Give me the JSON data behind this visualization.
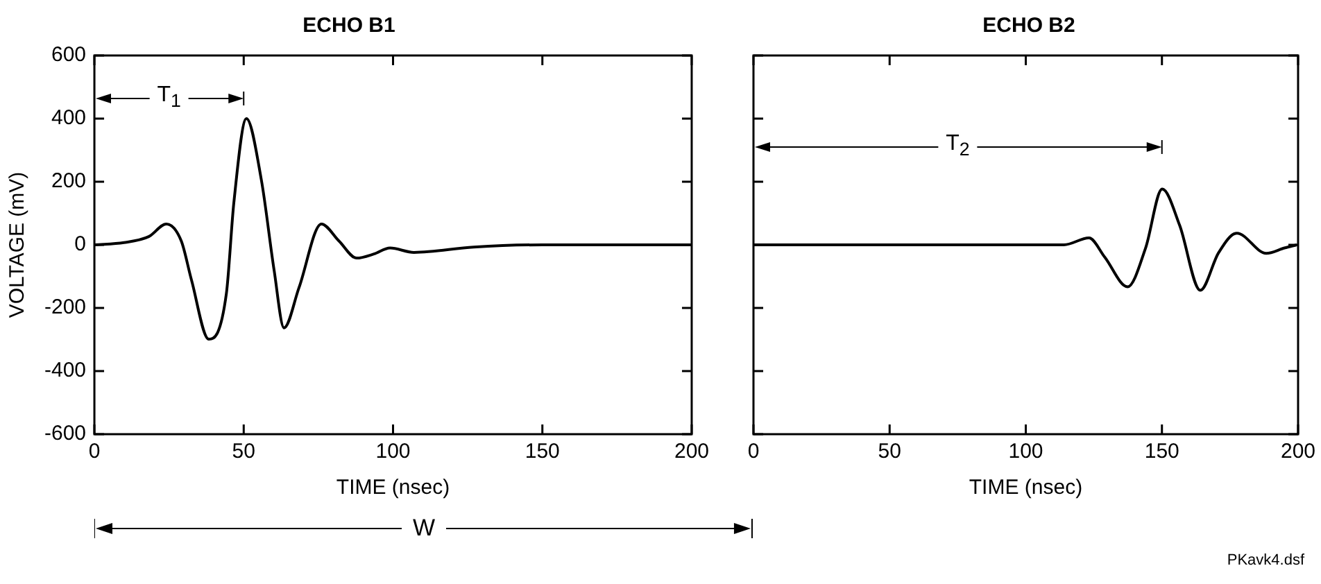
{
  "chart_data": [
    {
      "type": "line",
      "title": "ECHO B1",
      "xlabel": "TIME (nsec)",
      "ylabel": "VOLTAGE (mV)",
      "series": [
        {
          "color": "#000000",
          "x": [
            0,
            9.9,
            18.2,
            24.1,
            29.1,
            32.5,
            38.3,
            44.2,
            46.7,
            50.9,
            55.9,
            60.2,
            63.5,
            68.5,
            76,
            81.9,
            87.8,
            93.6,
            99,
            107,
            127,
            150,
            200
          ],
          "values": [
            0,
            7,
            26,
            66,
            12,
            -111,
            -299,
            -154,
            134,
            400,
            206,
            -82,
            -263,
            -136,
            66,
            12,
            -42,
            -29,
            -10,
            -24,
            -7,
            0,
            0
          ]
        }
      ],
      "xlim": [
        0,
        200
      ],
      "xticks": [
        0,
        50,
        100,
        150,
        200
      ],
      "ylim": [
        -600,
        600
      ],
      "yticks": [
        -600,
        -400,
        -200,
        0,
        200,
        400,
        600
      ],
      "line_style": "solid",
      "marker": "none",
      "legend": false,
      "annotations": [
        "T$_{1}$",
        "W"
      ]
    },
    {
      "type": "line",
      "title": "ECHO B2",
      "xlabel": "TIME (nsec)",
      "series": [
        {
          "color": "#000000",
          "x": [
            0,
            114,
            123.2,
            129,
            137.4,
            144,
            150.1,
            156.5,
            164.1,
            170.8,
            177.5,
            188.3,
            195,
            199.5
          ],
          "values": [
            0,
            0,
            22,
            -39,
            -133,
            -10,
            177,
            62,
            -144,
            -25,
            37,
            -27,
            -10,
            0
          ]
        }
      ],
      "xlim": [
        0,
        200
      ],
      "xticks": [
        0,
        50,
        100,
        150,
        200
      ],
      "ylim": [
        -600,
        600
      ],
      "yticks": [
        -600,
        -400,
        -200,
        0,
        200,
        400,
        600
      ],
      "tick_labels": "x",
      "line_style": "solid",
      "marker": "none",
      "legend": false,
      "annotations": [
        "T$_{2}$",
        "PKavk4.dsf"
      ]
    }
  ]
}
